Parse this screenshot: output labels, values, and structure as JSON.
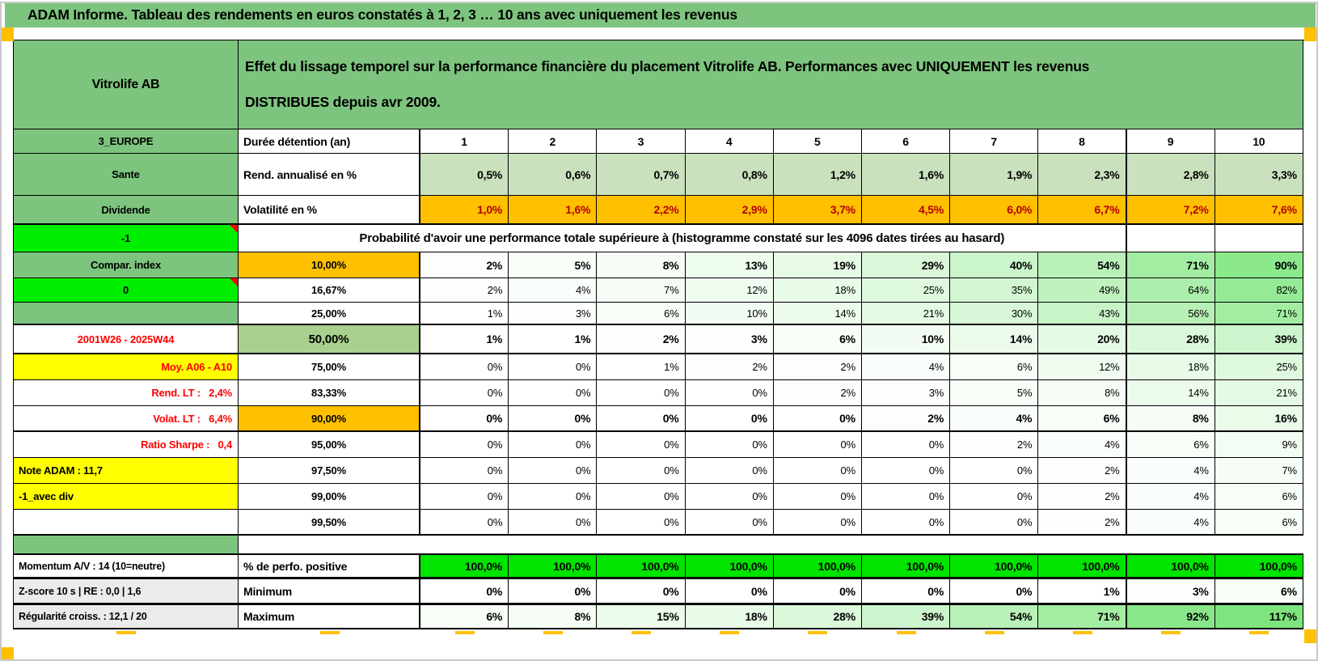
{
  "title_bar": {
    "title": "ADAM Informe. Tableau des rendements en euros constatés à 1, 2, 3 … 10 ans avec uniquement les revenus"
  },
  "header": {
    "asset_name": "Vitrolife AB",
    "description_line1": "Effet du lissage temporel sur la performance financière du placement Vitrolife AB. Performances avec UNIQUEMENT les revenus",
    "description_line2": "DISTRIBUES depuis avr 2009."
  },
  "columns": {
    "left_header": "3_EUROPE",
    "duration_label": "Durée détention (an)",
    "years": [
      "1",
      "2",
      "3",
      "4",
      "5",
      "6",
      "7",
      "8",
      "9",
      "10"
    ]
  },
  "perf_rows": [
    {
      "left": "Sante",
      "label": "Rend. annualisé en %",
      "values": [
        "0,5%",
        "0,6%",
        "0,7%",
        "0,8%",
        "1,2%",
        "1,6%",
        "1,9%",
        "2,3%",
        "2,8%",
        "3,3%"
      ]
    },
    {
      "left": "Dividende",
      "label": "Volatilité en %",
      "values": [
        "1,0%",
        "1,6%",
        "2,2%",
        "2,9%",
        "3,7%",
        "4,5%",
        "6,0%",
        "6,7%",
        "7,2%",
        "7,6%"
      ]
    }
  ],
  "probability": {
    "left_marker": "-1",
    "header": "Probabilité d'avoir une performance totale supérieure à (histogramme constaté sur les 4096 dates tirées au hasard)",
    "rows": [
      {
        "left": "Compar. index",
        "left_style": "green",
        "threshold": "10,00%",
        "threshold_style": "orange",
        "bold": true,
        "values": [
          2,
          5,
          8,
          13,
          19,
          29,
          40,
          54,
          71,
          90
        ]
      },
      {
        "left": "0",
        "left_style": "bright-green",
        "threshold": "16,67%",
        "threshold_style": "plain",
        "bold": false,
        "values": [
          2,
          4,
          7,
          12,
          18,
          25,
          35,
          49,
          64,
          82
        ]
      },
      {
        "left": "",
        "left_style": "green",
        "threshold": "25,00%",
        "threshold_style": "plain",
        "bold": false,
        "values": [
          1,
          3,
          6,
          10,
          14,
          21,
          30,
          43,
          56,
          71
        ]
      },
      {
        "left": "2001W26 - 2025W44",
        "left_style": "red-center",
        "threshold": "50,00%",
        "threshold_style": "green",
        "bold": true,
        "values": [
          1,
          1,
          2,
          3,
          6,
          10,
          14,
          20,
          28,
          39
        ]
      },
      {
        "left": "Moy. A06 - A10",
        "left_style": "yellow-right",
        "threshold": "75,00%",
        "threshold_style": "plain",
        "bold": false,
        "values": [
          0,
          0,
          1,
          2,
          2,
          4,
          6,
          12,
          18,
          25
        ]
      },
      {
        "left": "Rend. LT :   2,4%",
        "left_style": "red-right",
        "threshold": "83,33%",
        "threshold_style": "plain",
        "bold": false,
        "values": [
          0,
          0,
          0,
          0,
          2,
          3,
          5,
          8,
          14,
          21
        ]
      },
      {
        "left": "Volat. LT :   6,4%",
        "left_style": "red-right",
        "threshold": "90,00%",
        "threshold_style": "orange",
        "bold": true,
        "values": [
          0,
          0,
          0,
          0,
          0,
          2,
          4,
          6,
          8,
          16
        ]
      },
      {
        "left": "Ratio Sharpe :   0,4",
        "left_style": "red-right",
        "threshold": "95,00%",
        "threshold_style": "plain",
        "bold": false,
        "values": [
          0,
          0,
          0,
          0,
          0,
          0,
          2,
          4,
          6,
          9
        ]
      },
      {
        "left": "Note ADAM : 11,7",
        "left_style": "yellow-left",
        "threshold": "97,50%",
        "threshold_style": "plain",
        "bold": false,
        "values": [
          0,
          0,
          0,
          0,
          0,
          0,
          0,
          2,
          4,
          7
        ]
      },
      {
        "left": "-1_avec div",
        "left_style": "yellow-left",
        "threshold": "99,00%",
        "threshold_style": "plain",
        "bold": false,
        "values": [
          0,
          0,
          0,
          0,
          0,
          0,
          0,
          2,
          4,
          6
        ]
      },
      {
        "left": "",
        "left_style": "plain",
        "threshold": "99,50%",
        "threshold_style": "plain",
        "bold": false,
        "values": [
          0,
          0,
          0,
          0,
          0,
          0,
          0,
          2,
          4,
          6
        ]
      }
    ]
  },
  "bottom": {
    "rows": [
      {
        "left": "Momentum A/V : 14 (10=neutre)",
        "label": "% de perfo. positive",
        "values": [
          "100,0%",
          "100,0%",
          "100,0%",
          "100,0%",
          "100,0%",
          "100,0%",
          "100,0%",
          "100,0%",
          "100,0%",
          "100,0%"
        ],
        "style": "perfo"
      },
      {
        "left": "Z-score 10 s | RE : 0,0 | 1,6",
        "label": "Minimum",
        "values": [
          0,
          0,
          0,
          0,
          0,
          0,
          0,
          1,
          3,
          6
        ],
        "style": "tint"
      },
      {
        "left": "Régularité croiss. : 12,1 / 20",
        "label": "Maximum",
        "values": [
          6,
          8,
          15,
          18,
          28,
          39,
          54,
          71,
          92,
          117
        ],
        "style": "tint"
      }
    ]
  },
  "colors": {
    "header_green": "#7DC57E",
    "cell_light_green": "#C9E1BD",
    "orange": "#FFC000",
    "bright_green": "#00EE00",
    "perfo_green": "#00E400",
    "yellow": "#FFFF00",
    "red": "#FF0000",
    "dark_red": "#B30000",
    "gray_label": "#EBEBEB",
    "green_50": "#A9D08E",
    "tint_green": "#7EE57E"
  }
}
